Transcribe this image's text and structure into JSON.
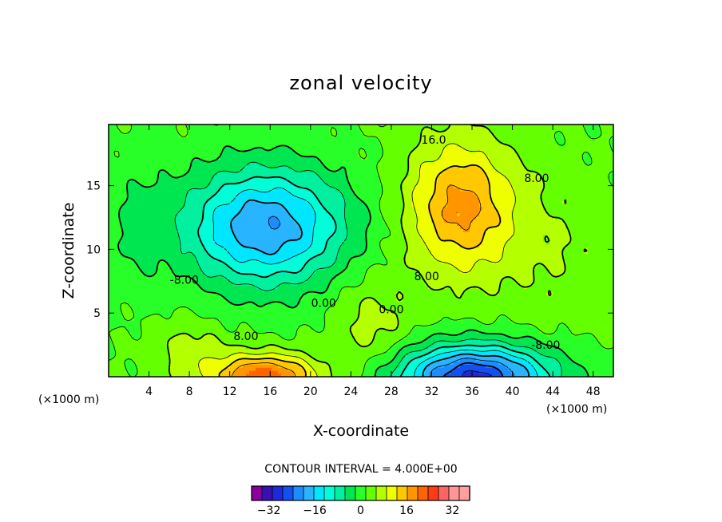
{
  "chart_data": {
    "type": "contour",
    "title": "zonal velocity",
    "xlabel": "X-coordinate",
    "ylabel": "Z-coordinate",
    "x_unit": "(×1000 m)",
    "y_unit": "(×1000 m)",
    "xlim": [
      0,
      50
    ],
    "ylim": [
      0,
      19.8
    ],
    "xticks": [
      "4",
      "8",
      "12",
      "16",
      "20",
      "24",
      "28",
      "32",
      "36",
      "40",
      "44",
      "48"
    ],
    "xtick_values": [
      4,
      8,
      12,
      16,
      20,
      24,
      28,
      32,
      36,
      40,
      44,
      48
    ],
    "yticks": [
      "5",
      "10",
      "15"
    ],
    "ytick_values": [
      5,
      10,
      15
    ],
    "contour_interval_text": "CONTOUR INTERVAL = 4.000E+00",
    "contour_interval": 4,
    "contour_labels": [
      {
        "text": "16.0",
        "x": 32.2,
        "z": 18.6
      },
      {
        "text": "8.00",
        "x": 42.4,
        "z": 15.6
      },
      {
        "text": "-8.00",
        "x": 7.5,
        "z": 7.6
      },
      {
        "text": "0.00",
        "x": 21.3,
        "z": 5.8
      },
      {
        "text": "8.00",
        "x": 31.5,
        "z": 7.9
      },
      {
        "text": "0.00",
        "x": 28.0,
        "z": 5.3
      },
      {
        "text": "8.00",
        "x": 13.6,
        "z": 3.2
      },
      {
        "text": "-8.00",
        "x": 43.3,
        "z": 2.5
      }
    ],
    "features": [
      {
        "kind": "max",
        "value": 20,
        "x": 34.8,
        "z": 13.4
      },
      {
        "kind": "min",
        "value": -20,
        "x": 15.5,
        "z": 11.3
      },
      {
        "kind": "min",
        "value": -28,
        "x": 36.2,
        "z": 0.6
      },
      {
        "kind": "max",
        "value": 24,
        "x": 15.5,
        "z": 0.6
      }
    ],
    "colorbar": {
      "ticks": [
        "−32",
        "−16",
        "0",
        "16",
        "32"
      ],
      "tick_values": [
        -32,
        -16,
        0,
        16,
        32
      ],
      "levels": [
        -36,
        -32,
        -28,
        -24,
        -20,
        -16,
        -12,
        -8,
        -4,
        0,
        4,
        8,
        12,
        16,
        20,
        24,
        28,
        32,
        36
      ],
      "colors": [
        "#8a009a",
        "#3a10b4",
        "#1e28dc",
        "#1450f0",
        "#1e8cff",
        "#28b4ff",
        "#00e6ff",
        "#00ffd8",
        "#00f0a0",
        "#00e650",
        "#28ff28",
        "#64ff00",
        "#b4ff00",
        "#f0ff00",
        "#ffc800",
        "#ff9600",
        "#ff6400",
        "#ff3c14",
        "#ff6464",
        "#ff9696",
        "#ffa0a0"
      ]
    }
  }
}
